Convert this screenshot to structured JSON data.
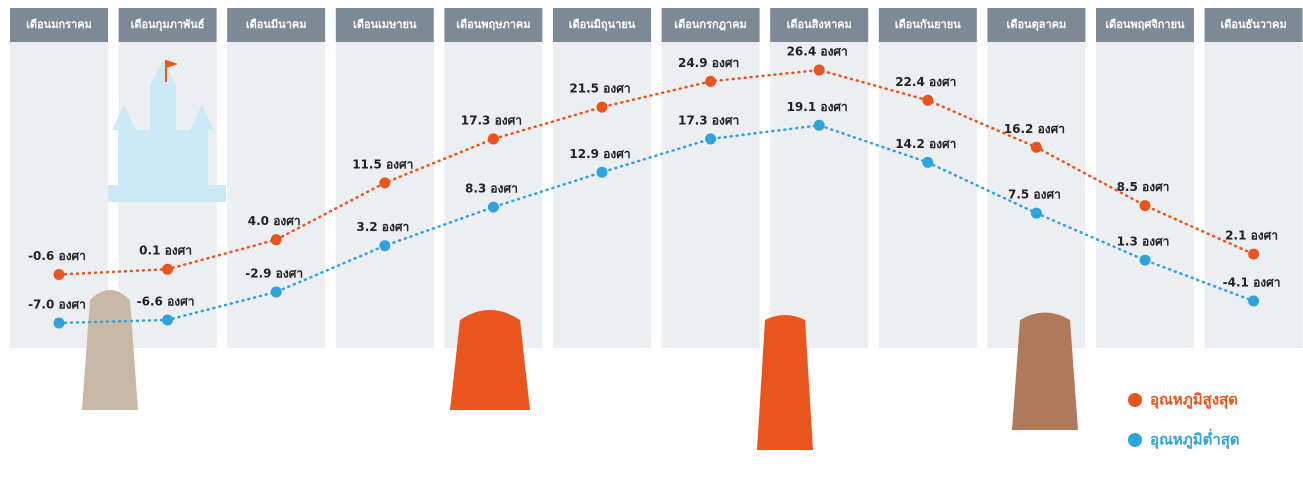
{
  "chart_data": {
    "type": "line",
    "categories": [
      "เดือนมกราคม",
      "เดือนกุมภาพันธ์",
      "เดือนมีนาคม",
      "เดือนเมษายน",
      "เดือนพฤษภาคม",
      "เดือนมิถุนายน",
      "เดือนกรกฎาคม",
      "เดือนสิงหาคม",
      "เดือนกันยายน",
      "เดือนตุลาคม",
      "เดือนพฤศจิกายน",
      "เดือนธันวาคม"
    ],
    "series": [
      {
        "name": "อุณหภูมิสูงสุด",
        "color": "#e8551e",
        "values": [
          -0.6,
          0.1,
          4.0,
          11.5,
          17.3,
          21.5,
          24.9,
          26.4,
          22.4,
          16.2,
          8.5,
          2.1
        ],
        "value_labels": [
          "-0.6 องศา",
          "0.1 องศา",
          "4.0 องศา",
          "11.5 องศา",
          "17.3 องศา",
          "21.5 องศา",
          "24.9 องศา",
          "26.4 องศา",
          "22.4 องศา",
          "16.2 องศา",
          "8.5 องศา",
          "2.1 องศา"
        ]
      },
      {
        "name": "อุณหภูมิต่ำสุด",
        "color": "#2ea3dc",
        "values": [
          -7.0,
          -6.6,
          -2.9,
          3.2,
          8.3,
          12.9,
          17.3,
          19.1,
          14.2,
          7.5,
          1.3,
          -4.1
        ],
        "value_labels": [
          "-7.0 องศา",
          "-6.6 องศา",
          "-2.9 องศา",
          "3.2 องศา",
          "8.3 องศา",
          "12.9 องศา",
          "17.3 องศา",
          "19.1 องศา",
          "14.2 องศา",
          "7.5 องศา",
          "1.3 องศา",
          "-4.1 องศา"
        ]
      }
    ],
    "legend": "bottom-right"
  }
}
